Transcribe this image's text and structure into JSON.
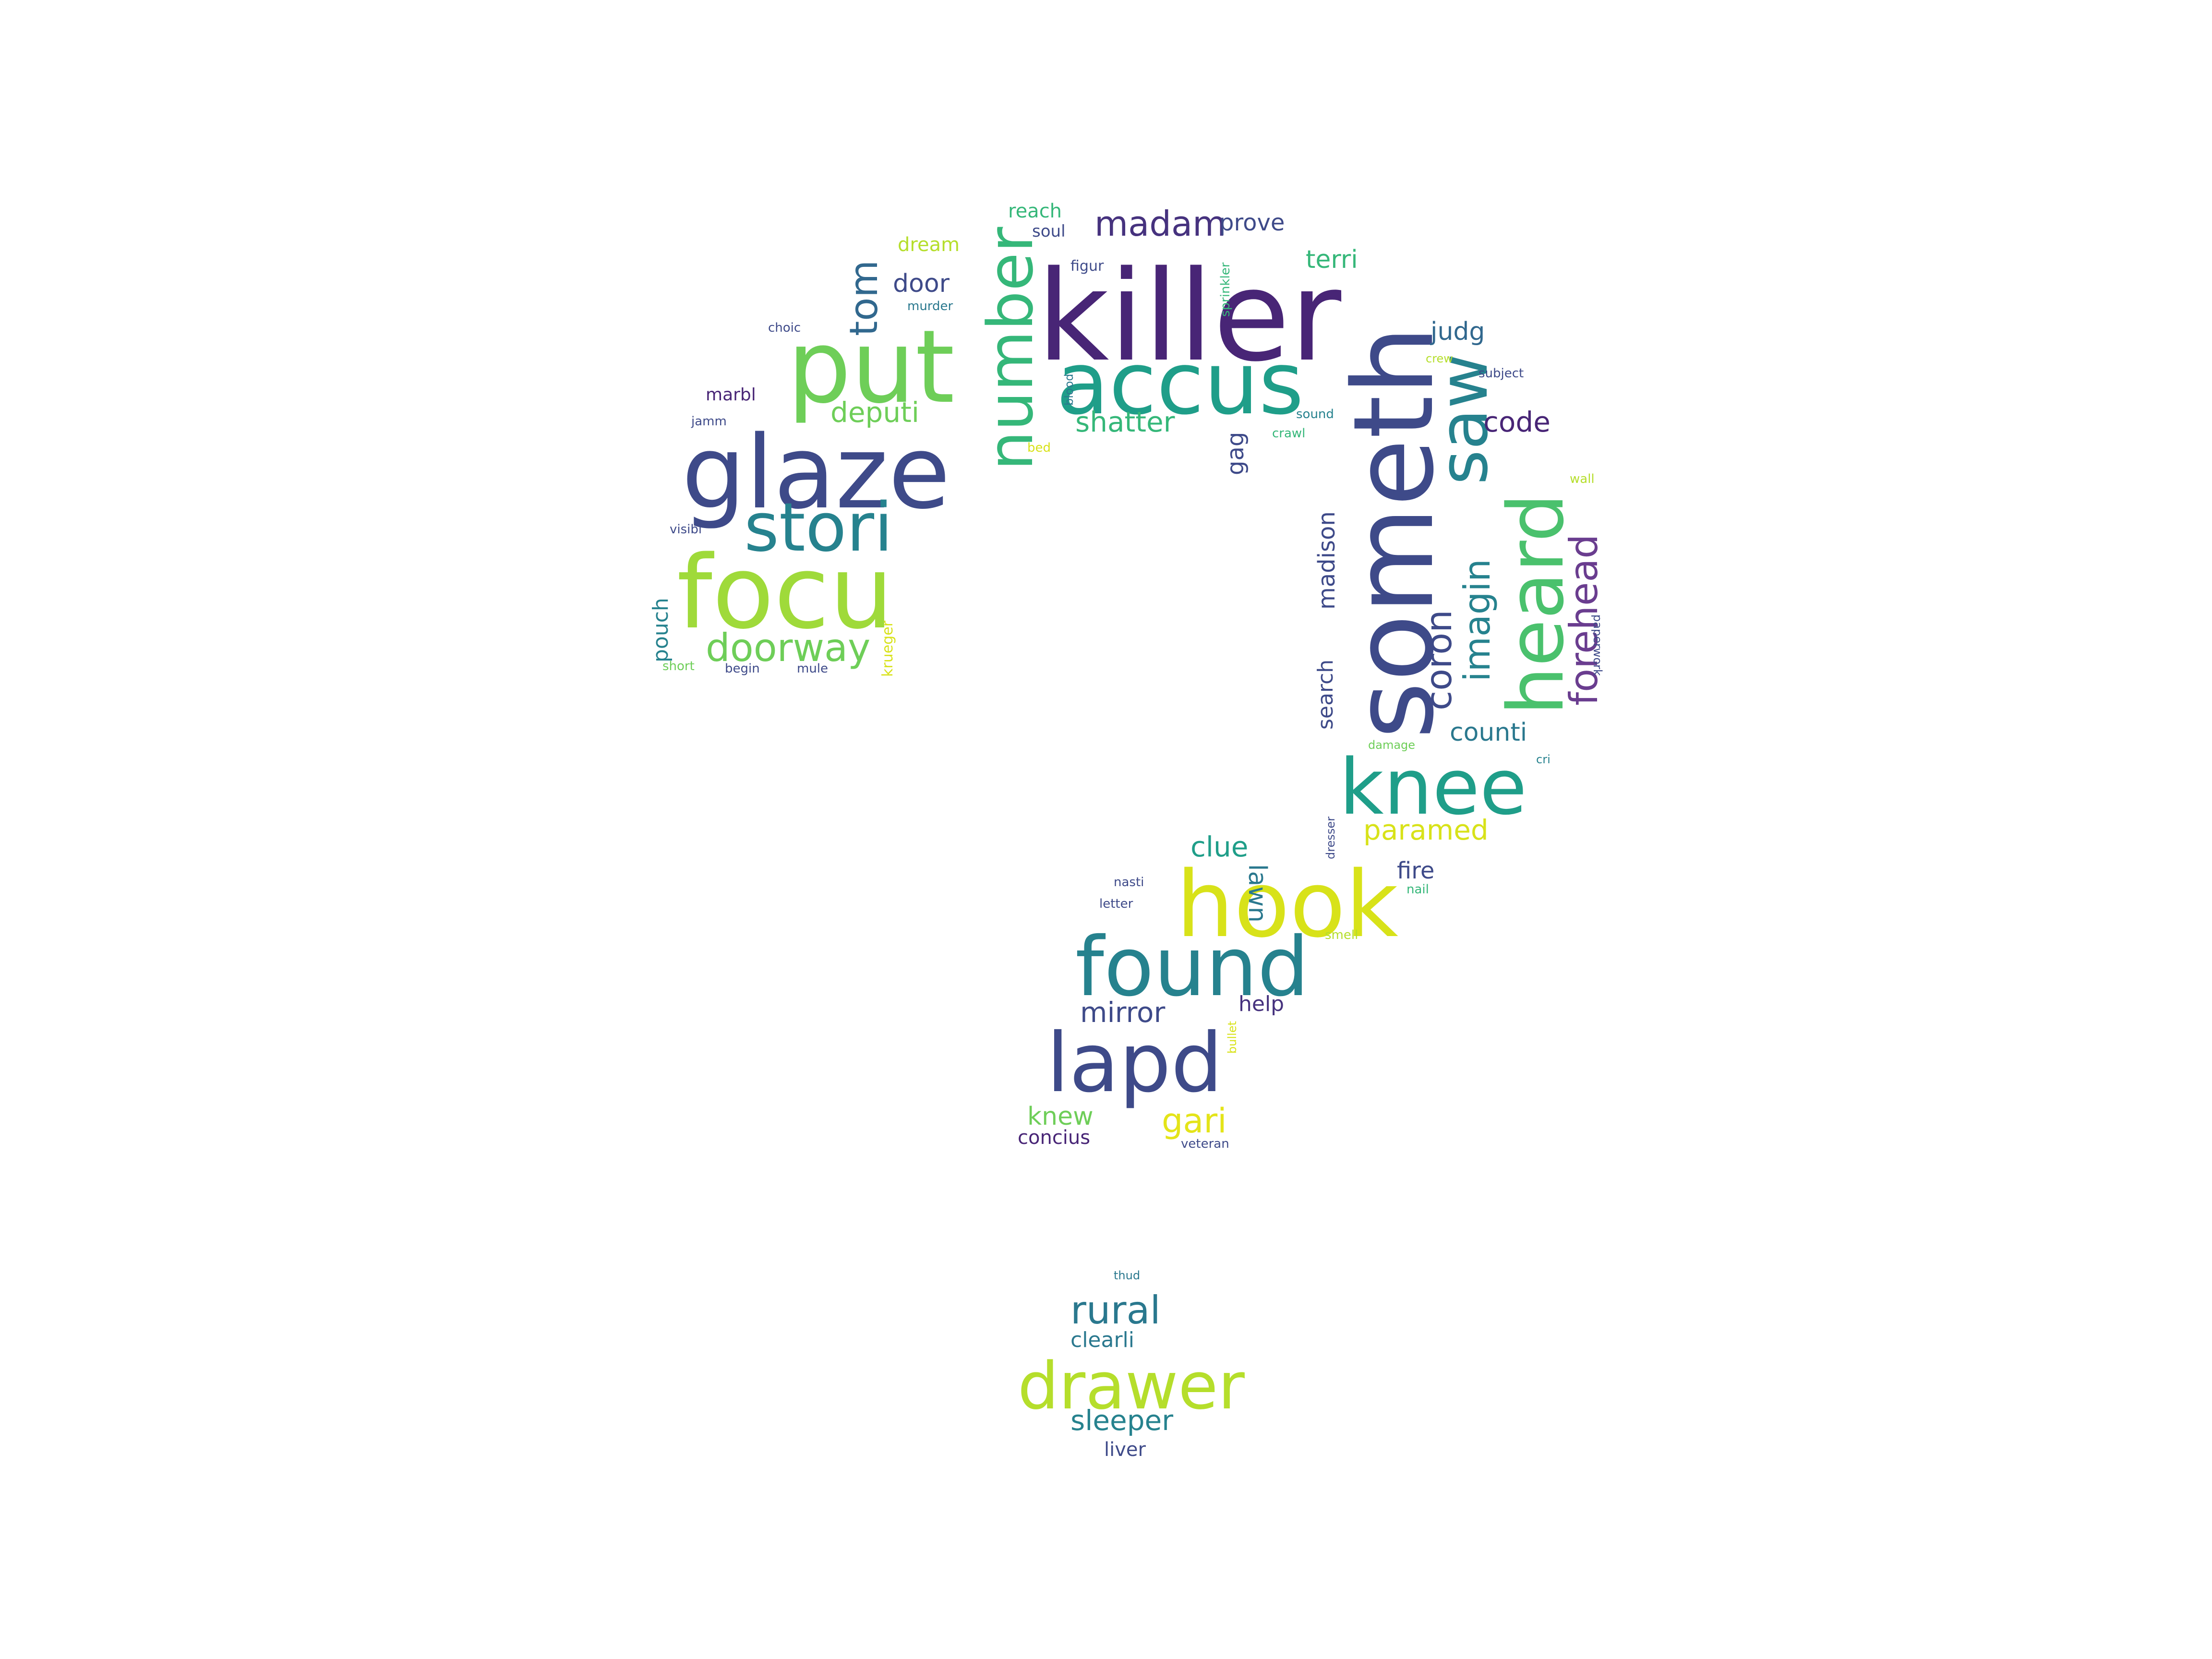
{
  "palette": {
    "dark_purple": "#482576",
    "indigo": "#3e4a89",
    "blue": "#31688e",
    "teal": "#26828e",
    "green_teal": "#1f9e89",
    "green": "#35b779",
    "light_green": "#6ece58",
    "lime": "#b5de2b",
    "yellow": "#d8e219"
  },
  "words": [
    {
      "text": "killer",
      "color": "#482576"
    },
    {
      "text": "someth",
      "color": "#3e4a89"
    },
    {
      "text": "put",
      "color": "#6ece58"
    },
    {
      "text": "accus",
      "color": "#1f9e89"
    },
    {
      "text": "glaze",
      "color": "#3e4a89"
    },
    {
      "text": "focu",
      "color": "#9fda3a"
    },
    {
      "text": "stori",
      "color": "#26828e"
    },
    {
      "text": "number",
      "color": "#35b779"
    },
    {
      "text": "saw",
      "color": "#26828e"
    },
    {
      "text": "heard",
      "color": "#4ac16d"
    },
    {
      "text": "knee",
      "color": "#1f9e89"
    },
    {
      "text": "hook",
      "color": "#d8e219"
    },
    {
      "text": "found",
      "color": "#26828e"
    },
    {
      "text": "lapd",
      "color": "#3e4a89"
    },
    {
      "text": "drawer",
      "color": "#b5de2b"
    },
    {
      "text": "doorway",
      "color": "#6ece58"
    },
    {
      "text": "forehead",
      "color": "#6a3d8f"
    },
    {
      "text": "madam",
      "color": "#46327e"
    },
    {
      "text": "tom",
      "color": "#31688e"
    },
    {
      "text": "coron",
      "color": "#3e4a89"
    },
    {
      "text": "imagin",
      "color": "#26828e"
    },
    {
      "text": "rural",
      "color": "#2a788e"
    },
    {
      "text": "shatter",
      "color": "#35b779"
    },
    {
      "text": "deputi",
      "color": "#6ece58"
    },
    {
      "text": "code",
      "color": "#482576"
    },
    {
      "text": "door",
      "color": "#3e4a89"
    },
    {
      "text": "judg",
      "color": "#31688e"
    },
    {
      "text": "terri",
      "color": "#35b779"
    },
    {
      "text": "prove",
      "color": "#3e4a89"
    },
    {
      "text": "dream",
      "color": "#b5de2b"
    },
    {
      "text": "reach",
      "color": "#35b779"
    },
    {
      "text": "counti",
      "color": "#2a788e"
    },
    {
      "text": "paramed",
      "color": "#d8e219"
    },
    {
      "text": "clue",
      "color": "#1f9e89"
    },
    {
      "text": "lawn",
      "color": "#2a788e"
    },
    {
      "text": "fire",
      "color": "#3e4a89"
    },
    {
      "text": "mirror",
      "color": "#3e4a89"
    },
    {
      "text": "help",
      "color": "#46327e"
    },
    {
      "text": "gari",
      "color": "#e4e419"
    },
    {
      "text": "knew",
      "color": "#6ece58"
    },
    {
      "text": "concius",
      "color": "#482576"
    },
    {
      "text": "madison",
      "color": "#3e4a89"
    },
    {
      "text": "search",
      "color": "#3e4a89"
    },
    {
      "text": "pouch",
      "color": "#26828e"
    },
    {
      "text": "marbl",
      "color": "#482576"
    },
    {
      "text": "clearli",
      "color": "#2a788e"
    },
    {
      "text": "sleeper",
      "color": "#26828e"
    },
    {
      "text": "liver",
      "color": "#3e4a89"
    },
    {
      "text": "gag",
      "color": "#3e4a89"
    },
    {
      "text": "soul",
      "color": "#3e4a89"
    },
    {
      "text": "figur",
      "color": "#3e4a89"
    },
    {
      "text": "murder",
      "color": "#2a788e"
    },
    {
      "text": "choic",
      "color": "#3e4a89"
    },
    {
      "text": "jamm",
      "color": "#3e4a89"
    },
    {
      "text": "visibl",
      "color": "#3e4a89"
    },
    {
      "text": "subject",
      "color": "#3e4a89"
    },
    {
      "text": "nasti",
      "color": "#3e4a89"
    },
    {
      "text": "letter",
      "color": "#3e4a89"
    },
    {
      "text": "nail",
      "color": "#35b779"
    },
    {
      "text": "thud",
      "color": "#2a788e"
    },
    {
      "text": "veteran",
      "color": "#3e4a89"
    },
    {
      "text": "krueger",
      "color": "#d8e219"
    },
    {
      "text": "crawl",
      "color": "#35b779"
    },
    {
      "text": "sound",
      "color": "#26828e"
    },
    {
      "text": "sprinkler",
      "color": "#35b779"
    },
    {
      "text": "wall",
      "color": "#b5de2b"
    },
    {
      "text": "bed",
      "color": "#d8e219"
    },
    {
      "text": "smell",
      "color": "#b5de2b"
    },
    {
      "text": "begin",
      "color": "#3e4a89"
    },
    {
      "text": "mule",
      "color": "#3e4a89"
    },
    {
      "text": "short",
      "color": "#6ece58"
    },
    {
      "text": "cri",
      "color": "#26828e"
    },
    {
      "text": "blood",
      "color": "#2a788e"
    },
    {
      "text": "dresser",
      "color": "#3e4a89"
    },
    {
      "text": "crew",
      "color": "#b5de2b"
    },
    {
      "text": "damage",
      "color": "#6ece58"
    },
    {
      "text": "bullet",
      "color": "#d8e219"
    },
    {
      "text": "paperwork",
      "color": "#3e4a89"
    }
  ]
}
